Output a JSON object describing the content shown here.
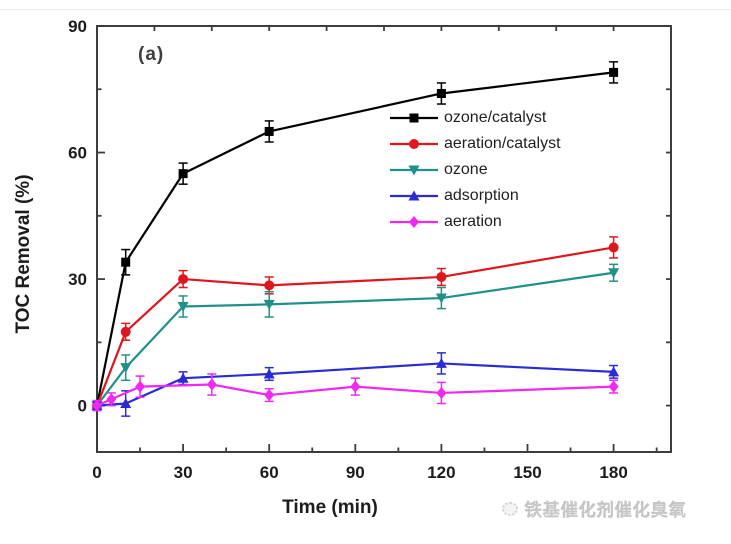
{
  "figure": {
    "panel_label": "(a)",
    "watermark_text": "铁基催化剂催化臭氧"
  },
  "chart_data": {
    "type": "line",
    "title": "",
    "xlabel": "Time (min)",
    "ylabel": "TOC Removal (%)",
    "xlim": [
      0,
      200
    ],
    "ylim": [
      -11,
      90
    ],
    "x_major_ticks": [
      0,
      30,
      60,
      90,
      120,
      150,
      180
    ],
    "x_minor_ticks": [
      15,
      45,
      75,
      105,
      135,
      165,
      195
    ],
    "x_top_ticks": [
      20,
      40,
      60,
      80,
      100,
      120,
      140,
      160,
      180
    ],
    "y_major_ticks": [
      0,
      30,
      60,
      90
    ],
    "y_minor_ticks": [
      15,
      45,
      75
    ],
    "y_right_ticks": [
      0,
      15,
      30,
      45,
      60,
      75
    ],
    "grid": false,
    "legend_position": "inside-upper-right",
    "axis_color": "#3d3d3d",
    "tick_label_color": "#1c1c1c",
    "series": [
      {
        "name": "ozone/catalyst",
        "color": "#000000",
        "marker": "square",
        "x": [
          0,
          10,
          30,
          60,
          120,
          180
        ],
        "y": [
          0,
          34,
          55,
          65,
          74,
          79
        ],
        "yerr": [
          0.8,
          3,
          2.5,
          2.5,
          2.5,
          2.5
        ]
      },
      {
        "name": "aeration/catalyst",
        "color": "#e0161f",
        "marker": "circle",
        "x": [
          0,
          10,
          30,
          60,
          120,
          180
        ],
        "y": [
          0,
          17.5,
          30,
          28.5,
          30.5,
          37.5
        ],
        "yerr": [
          0.8,
          2,
          2,
          2,
          2,
          2.5
        ]
      },
      {
        "name": "ozone",
        "color": "#1f9188",
        "marker": "triangle-down",
        "x": [
          0,
          10,
          30,
          60,
          120,
          180
        ],
        "y": [
          0,
          9,
          23.5,
          24,
          25.5,
          31.5
        ],
        "yerr": [
          0.8,
          3,
          2.5,
          3,
          2.5,
          2
        ]
      },
      {
        "name": "adsorption",
        "color": "#2b2bd5",
        "marker": "triangle-up",
        "x": [
          0,
          10,
          30,
          60,
          120,
          180
        ],
        "y": [
          0,
          0.5,
          6.5,
          7.5,
          10,
          8
        ],
        "yerr": [
          0.8,
          3,
          1.5,
          1.5,
          2.5,
          1.5
        ]
      },
      {
        "name": "aeration",
        "color": "#f128f1",
        "marker": "diamond",
        "x": [
          0,
          5,
          15,
          40,
          60,
          90,
          120,
          180
        ],
        "y": [
          0,
          1.5,
          4.5,
          5,
          2.5,
          4.5,
          3,
          4.5
        ],
        "yerr": [
          1.2,
          1.5,
          2.5,
          2.5,
          1.5,
          2,
          2.5,
          1.5
        ]
      }
    ]
  }
}
